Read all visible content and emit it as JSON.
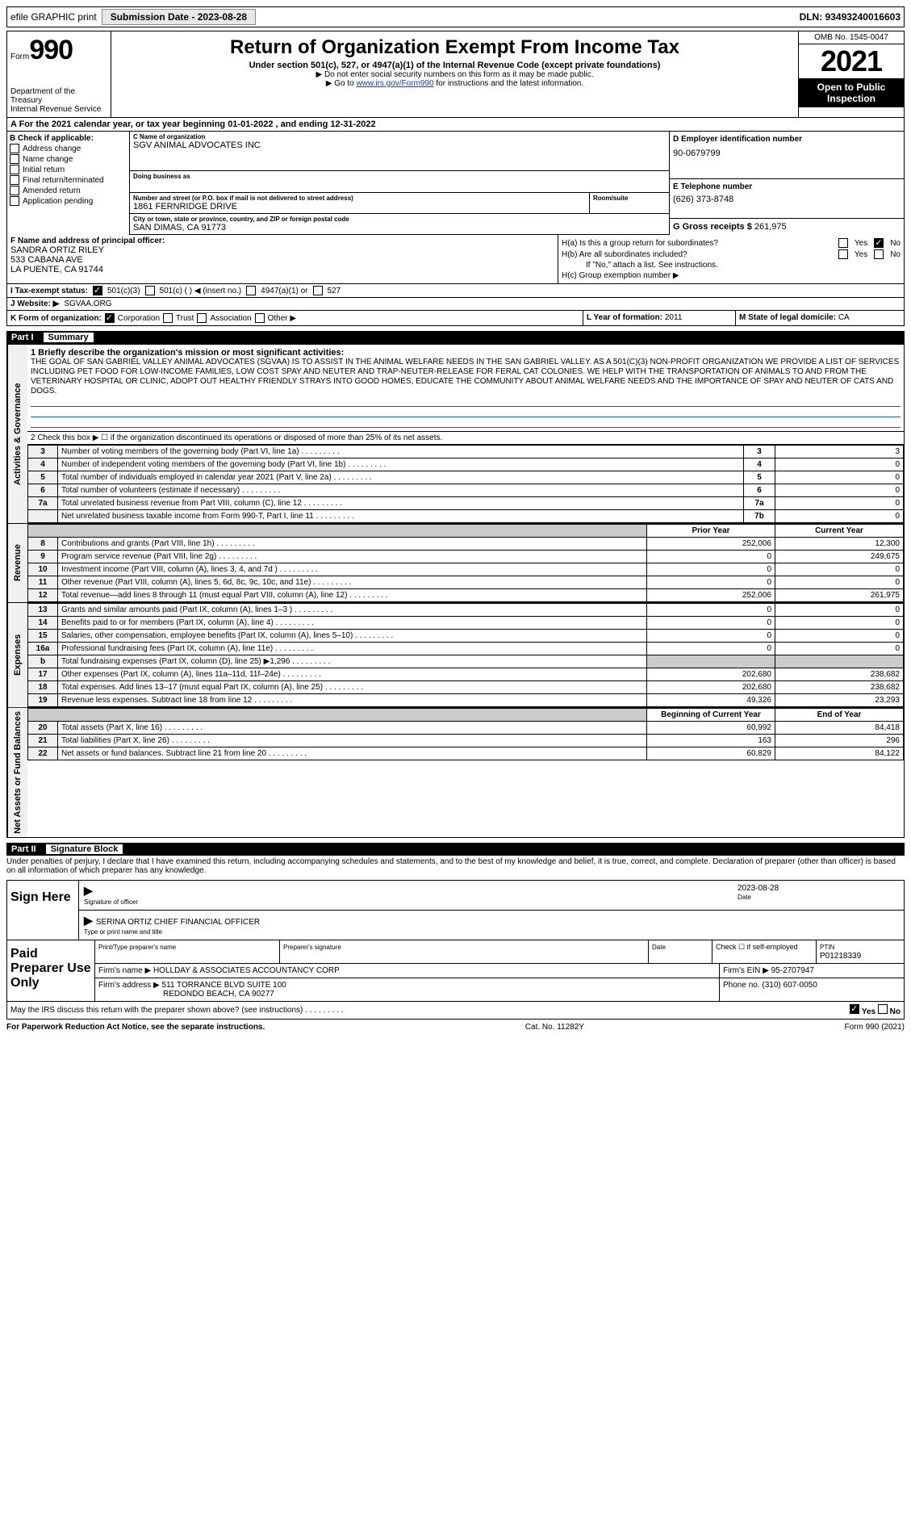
{
  "top_bar": {
    "efile_label": "efile GRAPHIC print",
    "sub_date_label": "Submission Date - 2023-08-28",
    "dln": "DLN: 93493240016603"
  },
  "header": {
    "form_label": "Form",
    "form_num": "990",
    "dept": "Department of the Treasury",
    "irs": "Internal Revenue Service",
    "title": "Return of Organization Exempt From Income Tax",
    "subtitle1": "Under section 501(c), 527, or 4947(a)(1) of the Internal Revenue Code (except private foundations)",
    "subtitle2": "▶ Do not enter social security numbers on this form as it may be made public.",
    "subtitle3_pre": "▶ Go to ",
    "subtitle3_link": "www.irs.gov/Form990",
    "subtitle3_post": " for instructions and the latest information.",
    "omb": "OMB No. 1545-0047",
    "year": "2021",
    "open": "Open to Public Inspection"
  },
  "period": "A For the 2021 calendar year, or tax year beginning 01-01-2022  , and ending 12-31-2022",
  "section_b": {
    "label": "B Check if applicable:",
    "items": [
      "Address change",
      "Name change",
      "Initial return",
      "Final return/terminated",
      "Amended return",
      "Application pending"
    ]
  },
  "section_c": {
    "name_label": "C Name of organization",
    "name": "SGV ANIMAL ADVOCATES INC",
    "dba_label": "Doing business as",
    "street_label": "Number and street (or P.O. box if mail is not delivered to street address)",
    "street": "1861 FERNRIDGE DRIVE",
    "room_label": "Room/suite",
    "city_label": "City or town, state or province, country, and ZIP or foreign postal code",
    "city": "SAN DIMAS, CA  91773"
  },
  "section_d": {
    "label": "D Employer identification number",
    "value": "90-0679799"
  },
  "section_e": {
    "label": "E Telephone number",
    "value": "(626) 373-8748"
  },
  "section_g": {
    "label": "G Gross receipts $",
    "value": "261,975"
  },
  "section_f": {
    "label": "F  Name and address of principal officer:",
    "name": "SANDRA ORTIZ RILEY",
    "addr1": "533 CABANA AVE",
    "addr2": "LA PUENTE, CA  91744"
  },
  "section_h": {
    "ha": "H(a)  Is this a group return for subordinates?",
    "hb": "H(b)  Are all subordinates included?",
    "hb_note": "If \"No,\" attach a list. See instructions.",
    "hc": "H(c)  Group exemption number ▶",
    "yes": "Yes",
    "no": "No"
  },
  "section_i": {
    "label": "I  Tax-exempt status:",
    "opt1": "501(c)(3)",
    "opt2": "501(c) (   ) ◀ (insert no.)",
    "opt3": "4947(a)(1) or",
    "opt4": "527"
  },
  "section_j": {
    "label": "J  Website: ▶",
    "value": "SGVAA.ORG"
  },
  "section_k": {
    "label": "K Form of organization:",
    "corp": "Corporation",
    "trust": "Trust",
    "assoc": "Association",
    "other": "Other ▶"
  },
  "section_l": {
    "label": "L Year of formation:",
    "value": "2011"
  },
  "section_m": {
    "label": "M State of legal domicile:",
    "value": "CA"
  },
  "part1": {
    "label": "Part I",
    "title": "Summary",
    "side_gov": "Activities & Governance",
    "side_rev": "Revenue",
    "side_exp": "Expenses",
    "side_net": "Net Assets or Fund Balances",
    "line1_label": "1  Briefly describe the organization's mission or most significant activities:",
    "mission": "THE GOAL OF SAN GABRIEL VALLEY ANIMAL ADVOCATES (SGVAA) IS TO ASSIST IN THE ANIMAL WELFARE NEEDS IN THE SAN GABRIEL VALLEY. AS A 501(C)(3) NON-PROFIT ORGANIZATION WE PROVIDE A LIST OF SERVICES INCLUDING PET FOOD FOR LOW-INCOME FAMILIES, LOW COST SPAY AND NEUTER AND TRAP-NEUTER-RELEASE FOR FERAL CAT COLONIES. WE HELP WITH THE TRANSPORTATION OF ANIMALS TO AND FROM THE VETERINARY HOSPITAL OR CLINIC, ADOPT OUT HEALTHY FRIENDLY STRAYS INTO GOOD HOMES, EDUCATE THE COMMUNITY ABOUT ANIMAL WELFARE NEEDS AND THE IMPORTANCE OF SPAY AND NEUTER OF CATS AND DOGS.",
    "line2": "2  Check this box ▶ ☐ if the organization discontinued its operations or disposed of more than 25% of its net assets.",
    "rows_gov": [
      {
        "n": "3",
        "desc": "Number of voting members of the governing body (Part VI, line 1a)",
        "box": "3",
        "val": "3"
      },
      {
        "n": "4",
        "desc": "Number of independent voting members of the governing body (Part VI, line 1b)",
        "box": "4",
        "val": "0"
      },
      {
        "n": "5",
        "desc": "Total number of individuals employed in calendar year 2021 (Part V, line 2a)",
        "box": "5",
        "val": "0"
      },
      {
        "n": "6",
        "desc": "Total number of volunteers (estimate if necessary)",
        "box": "6",
        "val": "0"
      },
      {
        "n": "7a",
        "desc": "Total unrelated business revenue from Part VIII, column (C), line 12",
        "box": "7a",
        "val": "0"
      },
      {
        "n": "",
        "desc": "Net unrelated business taxable income from Form 990-T, Part I, line 11",
        "box": "7b",
        "val": "0"
      }
    ],
    "prior_label": "Prior Year",
    "current_label": "Current Year",
    "rows_rev": [
      {
        "n": "8",
        "desc": "Contributions and grants (Part VIII, line 1h)",
        "prior": "252,006",
        "curr": "12,300"
      },
      {
        "n": "9",
        "desc": "Program service revenue (Part VIII, line 2g)",
        "prior": "0",
        "curr": "249,675"
      },
      {
        "n": "10",
        "desc": "Investment income (Part VIII, column (A), lines 3, 4, and 7d )",
        "prior": "0",
        "curr": "0"
      },
      {
        "n": "11",
        "desc": "Other revenue (Part VIII, column (A), lines 5, 6d, 8c, 9c, 10c, and 11e)",
        "prior": "0",
        "curr": "0"
      },
      {
        "n": "12",
        "desc": "Total revenue—add lines 8 through 11 (must equal Part VIII, column (A), line 12)",
        "prior": "252,006",
        "curr": "261,975"
      }
    ],
    "rows_exp": [
      {
        "n": "13",
        "desc": "Grants and similar amounts paid (Part IX, column (A), lines 1–3 )",
        "prior": "0",
        "curr": "0"
      },
      {
        "n": "14",
        "desc": "Benefits paid to or for members (Part IX, column (A), line 4)",
        "prior": "0",
        "curr": "0"
      },
      {
        "n": "15",
        "desc": "Salaries, other compensation, employee benefits (Part IX, column (A), lines 5–10)",
        "prior": "0",
        "curr": "0"
      },
      {
        "n": "16a",
        "desc": "Professional fundraising fees (Part IX, column (A), line 11e)",
        "prior": "0",
        "curr": "0"
      },
      {
        "n": "b",
        "desc": "Total fundraising expenses (Part IX, column (D), line 25) ▶1,296",
        "prior": "",
        "curr": "",
        "gray": true
      },
      {
        "n": "17",
        "desc": "Other expenses (Part IX, column (A), lines 11a–11d, 11f–24e)",
        "prior": "202,680",
        "curr": "238,682"
      },
      {
        "n": "18",
        "desc": "Total expenses. Add lines 13–17 (must equal Part IX, column (A), line 25)",
        "prior": "202,680",
        "curr": "238,682"
      },
      {
        "n": "19",
        "desc": "Revenue less expenses. Subtract line 18 from line 12",
        "prior": "49,326",
        "curr": "23,293"
      }
    ],
    "begin_label": "Beginning of Current Year",
    "end_label": "End of Year",
    "rows_net": [
      {
        "n": "20",
        "desc": "Total assets (Part X, line 16)",
        "prior": "60,992",
        "curr": "84,418"
      },
      {
        "n": "21",
        "desc": "Total liabilities (Part X, line 26)",
        "prior": "163",
        "curr": "296"
      },
      {
        "n": "22",
        "desc": "Net assets or fund balances. Subtract line 21 from line 20",
        "prior": "60,829",
        "curr": "84,122"
      }
    ]
  },
  "part2": {
    "label": "Part II",
    "title": "Signature Block",
    "penalty": "Under penalties of perjury, I declare that I have examined this return, including accompanying schedules and statements, and to the best of my knowledge and belief, it is true, correct, and complete. Declaration of preparer (other than officer) is based on all information of which preparer has any knowledge.",
    "sign_here": "Sign Here",
    "sig_officer": "Signature of officer",
    "sig_date": "2023-08-28",
    "date_lbl": "Date",
    "name_title": "SERINA ORTIZ  CHIEF FINANCIAL OFFICER",
    "name_lbl": "Type or print name and title",
    "paid_label": "Paid Preparer Use Only",
    "prep_name_lbl": "Print/Type preparer's name",
    "prep_sig_lbl": "Preparer's signature",
    "prep_date_lbl": "Date",
    "check_self": "Check ☐ if self-employed",
    "ptin_lbl": "PTIN",
    "ptin": "P01218339",
    "firm_name_lbl": "Firm's name  ▶",
    "firm_name": "HOLLDAY & ASSOCIATES ACCOUNTANCY CORP",
    "firm_ein_lbl": "Firm's EIN ▶",
    "firm_ein": "95-2707947",
    "firm_addr_lbl": "Firm's address ▶",
    "firm_addr1": "511 TORRANCE BLVD SUITE 100",
    "firm_addr2": "REDONDO BEACH, CA  90277",
    "firm_phone_lbl": "Phone no.",
    "firm_phone": "(310) 607-0050",
    "discuss": "May the IRS discuss this return with the preparer shown above? (see instructions)"
  },
  "footer": {
    "paperwork": "For Paperwork Reduction Act Notice, see the separate instructions.",
    "cat": "Cat. No. 11282Y",
    "form": "Form 990 (2021)"
  }
}
